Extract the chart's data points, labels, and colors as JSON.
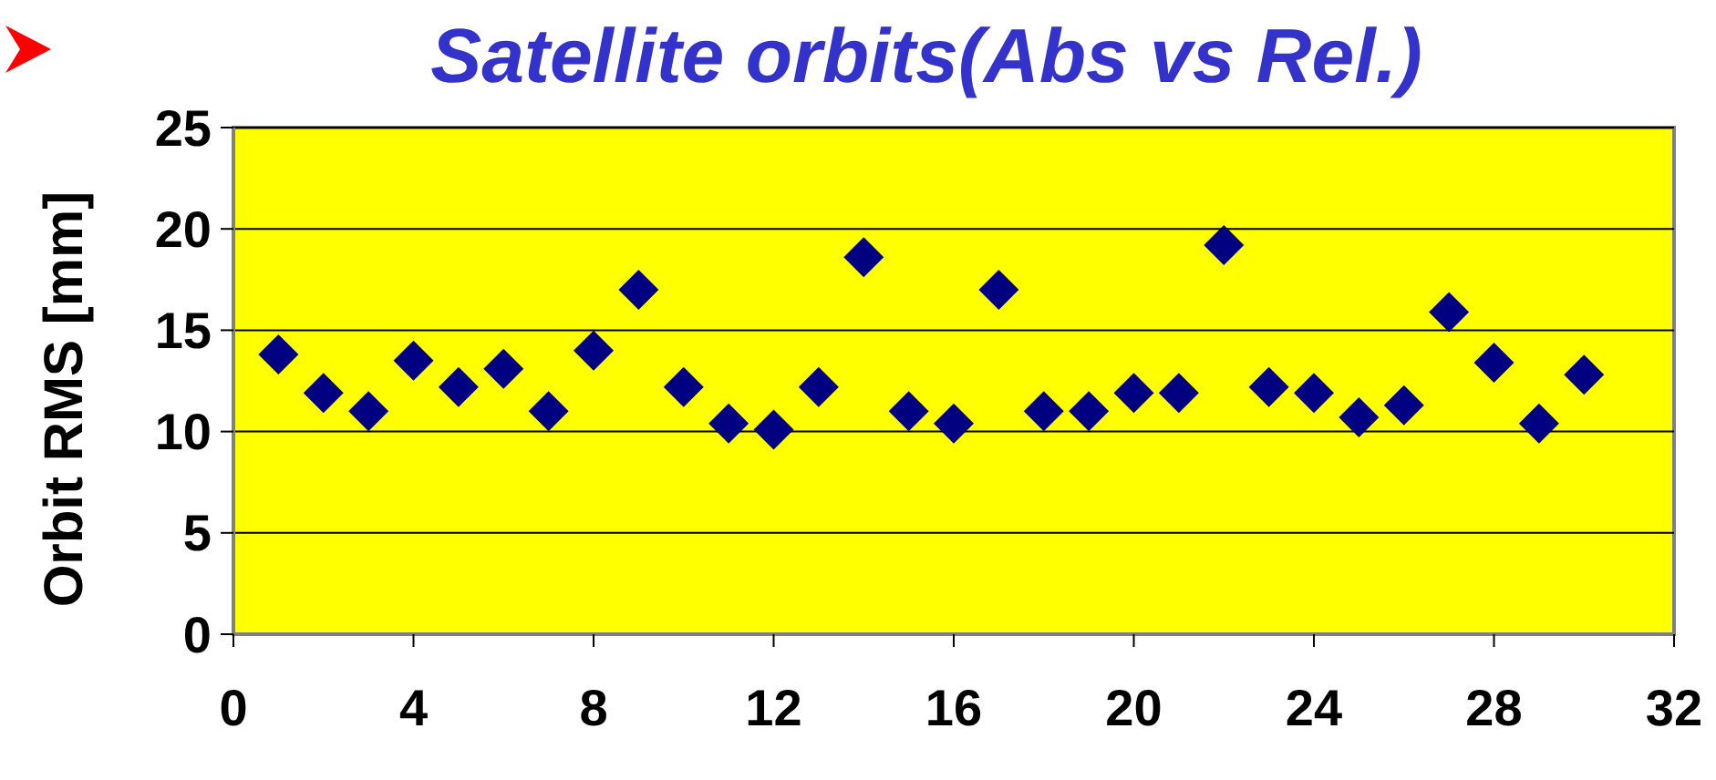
{
  "chart_data": {
    "type": "scatter",
    "title": "Satellite orbits(Abs vs Rel.)",
    "ylabel": "Orbit RMS  [mm]",
    "x": [
      1,
      2,
      3,
      4,
      5,
      6,
      7,
      8,
      9,
      10,
      11,
      12,
      13,
      14,
      15,
      16,
      17,
      18,
      19,
      20,
      21,
      22,
      23,
      24,
      25,
      26,
      27,
      28,
      29,
      30
    ],
    "series": [
      {
        "color": "#000080",
        "values": [
          13.8,
          11.9,
          11.0,
          13.5,
          12.2,
          13.1,
          11.0,
          14.0,
          17.0,
          12.2,
          10.4,
          10.1,
          12.2,
          18.6,
          11.0,
          10.4,
          17.0,
          11.0,
          11.0,
          11.9,
          11.9,
          19.2,
          12.2,
          11.9,
          10.7,
          11.3,
          15.9,
          13.4,
          10.4,
          12.8
        ]
      }
    ],
    "xlim": [
      0,
      32
    ],
    "xticks": [
      0,
      4,
      8,
      12,
      16,
      20,
      24,
      28,
      32
    ],
    "ylim": [
      0,
      25
    ],
    "yticks": [
      0,
      5,
      10,
      15,
      20,
      25
    ],
    "grid": "y",
    "marker": "diamond"
  }
}
